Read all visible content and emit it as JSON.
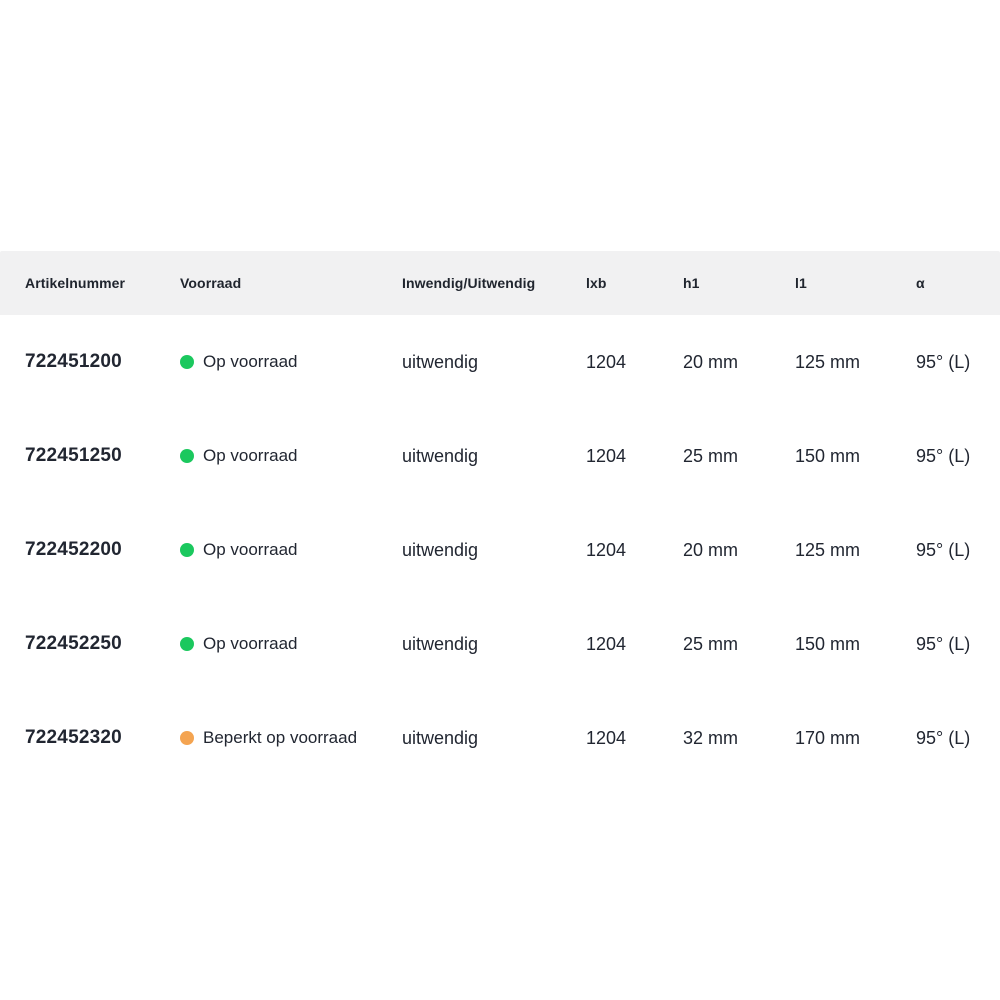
{
  "page": {
    "background": "#ffffff",
    "header_background": "#f1f1f2",
    "text_color": "#212631"
  },
  "status_colors": {
    "in_stock": "#1bc85e",
    "limited_stock": "#f4a451"
  },
  "table": {
    "header": {
      "artikelnummer": "Artikelnummer",
      "voorraad": "Voorraad",
      "inwendig_uitwendig": "Inwendig/Uitwendig",
      "lxb": "lxb",
      "h1": "h1",
      "l1": "l1",
      "alpha": "α"
    },
    "rows": [
      {
        "artikelnummer": "722451200",
        "voorraad": {
          "label": "Op voorraad",
          "color": "#1bc85e",
          "status": "in_stock"
        },
        "inwendig_uitwendig": "uitwendig",
        "lxb": "1204",
        "h1": "20 mm",
        "l1": "125 mm",
        "alpha": "95° (L)"
      },
      {
        "artikelnummer": "722451250",
        "voorraad": {
          "label": "Op voorraad",
          "color": "#1bc85e",
          "status": "in_stock"
        },
        "inwendig_uitwendig": "uitwendig",
        "lxb": "1204",
        "h1": "25 mm",
        "l1": "150 mm",
        "alpha": "95° (L)"
      },
      {
        "artikelnummer": "722452200",
        "voorraad": {
          "label": "Op voorraad",
          "color": "#1bc85e",
          "status": "in_stock"
        },
        "inwendig_uitwendig": "uitwendig",
        "lxb": "1204",
        "h1": "20 mm",
        "l1": "125 mm",
        "alpha": "95° (L)"
      },
      {
        "artikelnummer": "722452250",
        "voorraad": {
          "label": "Op voorraad",
          "color": "#1bc85e",
          "status": "in_stock"
        },
        "inwendig_uitwendig": "uitwendig",
        "lxb": "1204",
        "h1": "25 mm",
        "l1": "150 mm",
        "alpha": "95° (L)"
      },
      {
        "artikelnummer": "722452320",
        "voorraad": {
          "label": "Beperkt op voorraad",
          "color": "#f4a451",
          "status": "limited_stock"
        },
        "inwendig_uitwendig": "uitwendig",
        "lxb": "1204",
        "h1": "32 mm",
        "l1": "170 mm",
        "alpha": "95° (L)"
      }
    ]
  }
}
